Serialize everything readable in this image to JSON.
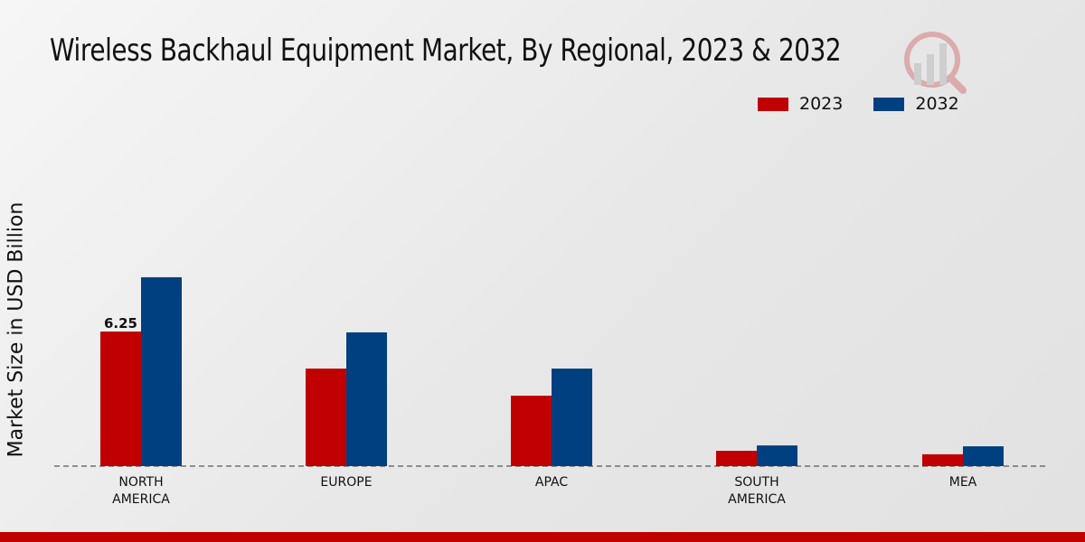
{
  "chart_data": {
    "type": "bar",
    "title": "Wireless Backhaul Equipment Market, By Regional, 2023 & 2032",
    "xlabel": "",
    "ylabel": "Market Size in USD Billion",
    "categories": [
      "NORTH\nAMERICA",
      "EUROPE",
      "APAC",
      "SOUTH\nAMERICA",
      "MEA"
    ],
    "series": [
      {
        "name": "2023",
        "color": "#c00000",
        "values": [
          6.25,
          4.53,
          3.27,
          0.71,
          0.55
        ]
      },
      {
        "name": "2032",
        "color": "#004080",
        "values": [
          8.77,
          6.21,
          4.53,
          0.96,
          0.92
        ]
      }
    ],
    "data_labels": [
      {
        "series": "2023",
        "category_index": 0,
        "text": "6.25"
      }
    ],
    "ylim": [
      0,
      11
    ],
    "grid": false,
    "legend_position": "top-right"
  }
}
